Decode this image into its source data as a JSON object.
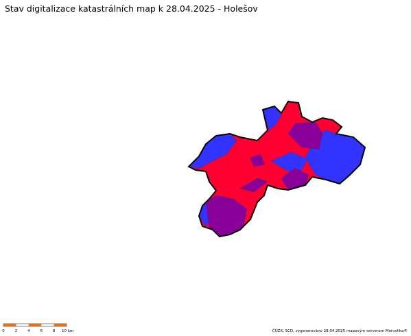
{
  "title": "Stav digitalizace katastrálních map k 28.04.2025 - Holešov",
  "scale_bar": {
    "labels": [
      "0",
      "2",
      "4",
      "6",
      "8",
      "10 km"
    ]
  },
  "credit": "ČÚZK, SCD, vygenerováno 28.04.2025 mapovým serverem Marushka®"
}
